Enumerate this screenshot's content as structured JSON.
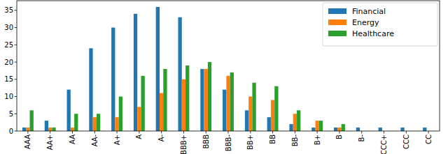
{
  "chart_data": {
    "type": "bar",
    "categories": [
      "AAA",
      "AA+",
      "AA",
      "AA-",
      "A+",
      "A",
      "A-",
      "BBB+",
      "BBB",
      "BBB-",
      "BB+",
      "BB",
      "BB-",
      "B+",
      "B",
      "B-",
      "CCC+",
      "CCC",
      "CC"
    ],
    "series": [
      {
        "name": "Financial",
        "color": "#1f77b4",
        "values": [
          1,
          3,
          12,
          24,
          30,
          34,
          36,
          33,
          18,
          12,
          6,
          4,
          2,
          1,
          1,
          1,
          1,
          1,
          1
        ]
      },
      {
        "name": "Energy",
        "color": "#ff7f0e",
        "values": [
          1,
          1,
          1,
          4,
          4,
          7,
          11,
          15,
          18,
          16,
          10,
          9,
          5,
          3,
          1,
          0,
          0,
          0,
          0
        ]
      },
      {
        "name": "Healthcare",
        "color": "#2ca02c",
        "values": [
          6,
          1,
          5,
          5,
          10,
          16,
          18,
          19,
          20,
          17,
          14,
          13,
          6,
          3,
          2,
          0,
          0,
          0,
          0
        ]
      }
    ],
    "ylim": [
      0,
      37.8
    ],
    "yticks": [
      0,
      5,
      10,
      15,
      20,
      25,
      30,
      35
    ],
    "legend": "upper right",
    "grid": false
  }
}
